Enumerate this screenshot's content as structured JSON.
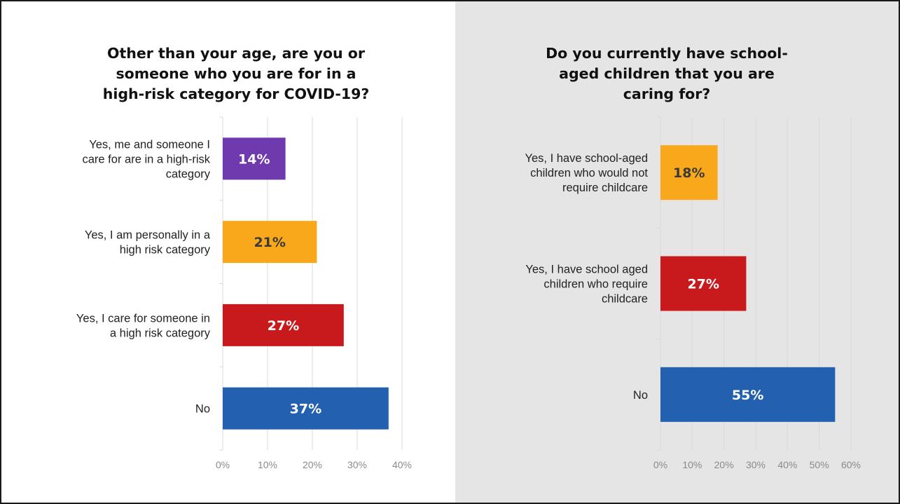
{
  "chart_data": [
    {
      "type": "bar",
      "orientation": "horizontal",
      "title": "Other than your age, are you or someone who you are for in a high-risk category for COVID-19?",
      "categories": [
        "Yes, me and someone I care for are in a high-risk category",
        "Yes, I am personally in a high risk category",
        "Yes, I care for someone in a high risk category",
        "No"
      ],
      "category_lines": [
        [
          "Yes, me and someone I",
          "care for are in a high-risk",
          "category"
        ],
        [
          "Yes, I am personally in a",
          "high risk category"
        ],
        [
          "Yes, I care for someone in",
          "a high risk category"
        ],
        [
          "No"
        ]
      ],
      "values": [
        14,
        21,
        27,
        37
      ],
      "data_labels": [
        "14%",
        "21%",
        "27%",
        "37%"
      ],
      "colors": [
        "#6f3aae",
        "#f9a81c",
        "#c8191c",
        "#2361b0"
      ],
      "label_colors": [
        "#ffffff",
        "#3a3a3a",
        "#ffffff",
        "#ffffff"
      ],
      "xlim": [
        0,
        40
      ],
      "xticks": [
        0,
        10,
        20,
        30,
        40
      ],
      "xtick_labels": [
        "0%",
        "10%",
        "20%",
        "30%",
        "40%"
      ],
      "grid": true,
      "legend": "none"
    },
    {
      "type": "bar",
      "orientation": "horizontal",
      "title": "Do you currently have school-aged children that you are caring for?",
      "categories": [
        "Yes, I have school-aged children who would not require childcare",
        "Yes, I have school aged children who require childcare",
        "No"
      ],
      "category_lines": [
        [
          "Yes, I have school-aged",
          "children who would not",
          "require childcare"
        ],
        [
          "Yes, I have school aged",
          "children who require",
          "childcare"
        ],
        [
          "No"
        ]
      ],
      "values": [
        18,
        27,
        55
      ],
      "data_labels": [
        "18%",
        "27%",
        "55%"
      ],
      "colors": [
        "#f9a81c",
        "#c8191c",
        "#2361b0"
      ],
      "label_colors": [
        "#3a3a3a",
        "#ffffff",
        "#ffffff"
      ],
      "xlim": [
        0,
        60
      ],
      "xticks": [
        0,
        10,
        20,
        30,
        40,
        50,
        60
      ],
      "xtick_labels": [
        "0%",
        "10%",
        "20%",
        "30%",
        "40%",
        "50%",
        "60%"
      ],
      "grid": true,
      "legend": "none"
    }
  ],
  "title_lines": [
    [
      "Other than your age, are you or",
      "someone who you are for in a",
      "high-risk category for COVID-19?"
    ],
    [
      "Do you currently have school-",
      "aged children that you are",
      "caring for?"
    ]
  ],
  "colors": {
    "left_background": "#ffffff",
    "right_background": "#e5e5e5",
    "gridline": "#d9d9d9",
    "tick_text": "#8a8a8a",
    "border": "#1a1a1a"
  }
}
